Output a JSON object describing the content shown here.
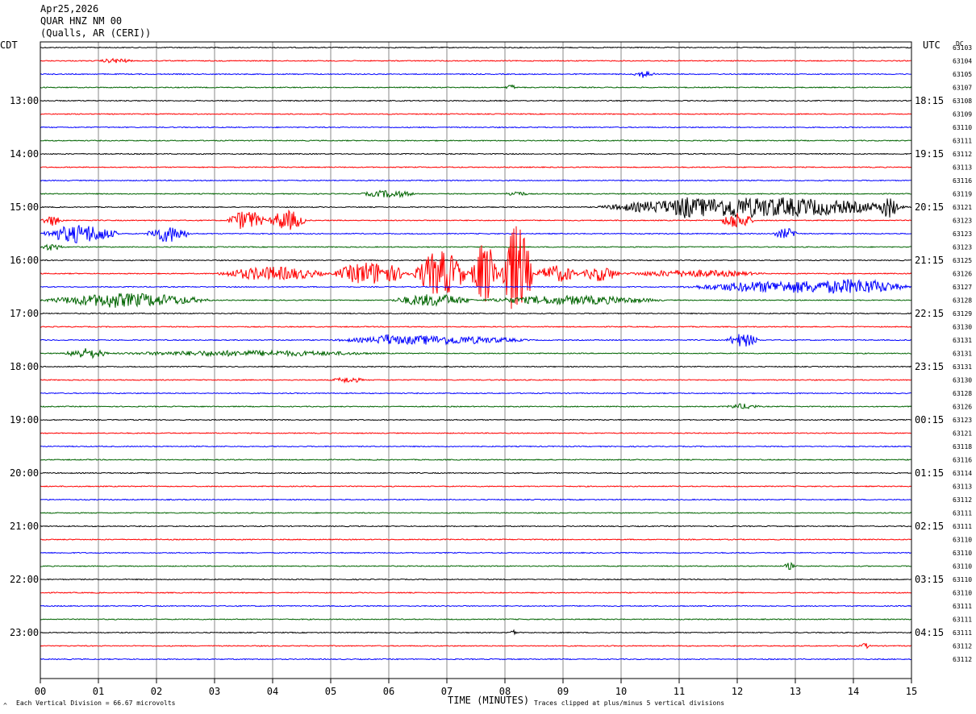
{
  "header": {
    "date": "Apr25,2026",
    "station": "QUAR HNZ NM 00",
    "location": "(Qualls, AR (CERI))"
  },
  "left_timezone": "CDT",
  "right_timezone": "UTC",
  "dc_label": "DC",
  "footer": {
    "scale_note": "Each Vertical Division =   66.67 microvolts",
    "xlabel": "TIME (MINUTES)",
    "clip_note": "Traces clipped at plus/minus 5 vertical divisions",
    "corner_mark": "^"
  },
  "colors": {
    "c0": "#000000",
    "c1": "#ff0000",
    "c2": "#0000ff",
    "c3": "#006400",
    "grid": "#888888"
  },
  "chart_data": {
    "type": "line",
    "x_ticks": [
      "00",
      "01",
      "02",
      "03",
      "04",
      "05",
      "06",
      "07",
      "08",
      "09",
      "10",
      "11",
      "12",
      "13",
      "14",
      "15"
    ],
    "xlim": [
      0,
      15
    ],
    "traces_per_hour": 4,
    "left_hour_labels": [
      "13:00",
      "14:00",
      "15:00",
      "16:00",
      "17:00",
      "18:00",
      "19:00",
      "20:00",
      "21:00",
      "22:00",
      "23:00"
    ],
    "right_hour_labels": [
      "18:15",
      "19:15",
      "20:15",
      "21:15",
      "22:15",
      "23:15",
      "00:15",
      "01:15",
      "02:15",
      "03:15",
      "04:15"
    ],
    "dc_values": [
      "63103",
      "63104",
      "63105",
      "63107",
      "63108",
      "63109",
      "63110",
      "63111",
      "63112",
      "63113",
      "63116",
      "63119",
      "63121",
      "63123",
      "63123",
      "63123",
      "63125",
      "63126",
      "63127",
      "63128",
      "63129",
      "63130",
      "63131",
      "63131",
      "63131",
      "63130",
      "63128",
      "63126",
      "63123",
      "63121",
      "63118",
      "63116",
      "63114",
      "63113",
      "63112",
      "63111",
      "63111",
      "63110",
      "63110",
      "63110",
      "63110",
      "63110",
      "63111",
      "63111",
      "63111",
      "63112",
      "63112"
    ],
    "events": [
      {
        "trace": 1,
        "start": 1.0,
        "end": 1.6,
        "amp": 2.5
      },
      {
        "trace": 2,
        "start": 10.2,
        "end": 10.6,
        "amp": 4
      },
      {
        "trace": 3,
        "start": 8.0,
        "end": 8.2,
        "amp": 3
      },
      {
        "trace": 11,
        "start": 5.5,
        "end": 6.5,
        "amp": 4
      },
      {
        "trace": 11,
        "start": 8.0,
        "end": 8.4,
        "amp": 3
      },
      {
        "trace": 12,
        "start": 9.5,
        "end": 15.0,
        "amp": 12
      },
      {
        "trace": 12,
        "start": 10.8,
        "end": 11.4,
        "amp": 14
      },
      {
        "trace": 12,
        "start": 11.8,
        "end": 12.1,
        "amp": 16
      },
      {
        "trace": 12,
        "start": 14.4,
        "end": 14.8,
        "amp": 13
      },
      {
        "trace": 13,
        "start": 0.0,
        "end": 0.4,
        "amp": 6
      },
      {
        "trace": 13,
        "start": 3.2,
        "end": 3.9,
        "amp": 12
      },
      {
        "trace": 13,
        "start": 3.9,
        "end": 4.6,
        "amp": 12
      },
      {
        "trace": 13,
        "start": 11.7,
        "end": 12.3,
        "amp": 10
      },
      {
        "trace": 14,
        "start": 0.0,
        "end": 1.4,
        "amp": 11
      },
      {
        "trace": 14,
        "start": 1.8,
        "end": 2.6,
        "amp": 10
      },
      {
        "trace": 14,
        "start": 12.6,
        "end": 13.1,
        "amp": 6
      },
      {
        "trace": 15,
        "start": 0.0,
        "end": 0.4,
        "amp": 4
      },
      {
        "trace": 17,
        "start": 3.0,
        "end": 5.0,
        "amp": 8
      },
      {
        "trace": 17,
        "start": 5.0,
        "end": 6.4,
        "amp": 14
      },
      {
        "trace": 17,
        "start": 6.4,
        "end": 7.4,
        "amp": 28
      },
      {
        "trace": 17,
        "start": 7.4,
        "end": 7.9,
        "amp": 40
      },
      {
        "trace": 17,
        "start": 7.9,
        "end": 8.5,
        "amp": 60
      },
      {
        "trace": 17,
        "start": 8.5,
        "end": 9.3,
        "amp": 10
      },
      {
        "trace": 17,
        "start": 9.3,
        "end": 10.0,
        "amp": 9
      },
      {
        "trace": 17,
        "start": 10.0,
        "end": 12.5,
        "amp": 4
      },
      {
        "trace": 18,
        "start": 11.0,
        "end": 15.0,
        "amp": 7
      },
      {
        "trace": 18,
        "start": 13.0,
        "end": 15.0,
        "amp": 9
      },
      {
        "trace": 19,
        "start": 0.0,
        "end": 3.0,
        "amp": 8
      },
      {
        "trace": 19,
        "start": 1.0,
        "end": 1.5,
        "amp": 10
      },
      {
        "trace": 19,
        "start": 6.0,
        "end": 7.5,
        "amp": 7
      },
      {
        "trace": 19,
        "start": 7.5,
        "end": 10.8,
        "amp": 5
      },
      {
        "trace": 22,
        "start": 5.0,
        "end": 8.5,
        "amp": 5
      },
      {
        "trace": 22,
        "start": 5.7,
        "end": 6.3,
        "amp": 7
      },
      {
        "trace": 22,
        "start": 11.8,
        "end": 12.4,
        "amp": 8
      },
      {
        "trace": 23,
        "start": 0.4,
        "end": 1.2,
        "amp": 6
      },
      {
        "trace": 23,
        "start": 1.2,
        "end": 6.0,
        "amp": 3
      },
      {
        "trace": 25,
        "start": 5.0,
        "end": 5.6,
        "amp": 3
      },
      {
        "trace": 27,
        "start": 11.8,
        "end": 12.4,
        "amp": 3
      },
      {
        "trace": 39,
        "start": 12.8,
        "end": 13.0,
        "amp": 4
      },
      {
        "trace": 44,
        "start": 8.1,
        "end": 8.2,
        "amp": 5
      },
      {
        "trace": 45,
        "start": 14.1,
        "end": 14.3,
        "amp": 3
      }
    ]
  }
}
